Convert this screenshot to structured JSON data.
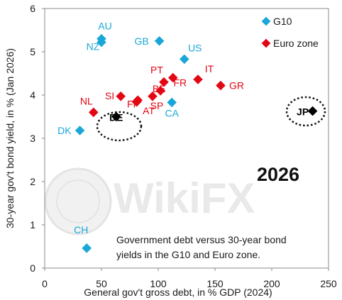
{
  "chart_data": {
    "type": "scatter",
    "title": "",
    "xlabel": "General gov't gross debt, in % GDP (2024)",
    "ylabel": "30-year gov't bond yield, in % (Jan 2026)",
    "xlim": [
      0,
      250
    ],
    "ylim": [
      0,
      6
    ],
    "xticks": [
      "0",
      "50",
      "100",
      "150",
      "200",
      "250"
    ],
    "yticks": [
      "0",
      "1",
      "2",
      "3",
      "4",
      "5",
      "6"
    ],
    "grid": false,
    "legend_position": "top-right",
    "annotation_year": "2026",
    "note_lines": [
      "Government debt versus 30-year bond",
      "yields in the G10 and Euro zone."
    ],
    "watermark": "WikiFX",
    "series": [
      {
        "name": "G10",
        "color": "#1aa7d8",
        "points": [
          {
            "label": "AU",
            "x": 50,
            "y": 5.3
          },
          {
            "label": "NZ",
            "x": 50,
            "y": 5.22
          },
          {
            "label": "GB",
            "x": 101,
            "y": 5.25
          },
          {
            "label": "US",
            "x": 123,
            "y": 4.83
          },
          {
            "label": "CA",
            "x": 112,
            "y": 3.83
          },
          {
            "label": "DK",
            "x": 31,
            "y": 3.18
          },
          {
            "label": "CH",
            "x": 37,
            "y": 0.46
          }
        ]
      },
      {
        "name": "Euro zone",
        "color": "#e30613",
        "points": [
          {
            "label": "PT",
            "x": 105,
            "y": 4.3
          },
          {
            "label": "IT",
            "x": 135,
            "y": 4.36
          },
          {
            "label": "GR",
            "x": 155,
            "y": 4.22
          },
          {
            "label": "FR",
            "x": 113,
            "y": 4.4
          },
          {
            "label": "BE",
            "x": 102,
            "y": 4.1
          },
          {
            "label": "SI",
            "x": 67,
            "y": 3.97
          },
          {
            "label": "SP",
            "x": 95,
            "y": 3.97
          },
          {
            "label": "FI",
            "x": 82,
            "y": 3.88
          },
          {
            "label": "AT",
            "x": 81,
            "y": 3.84
          },
          {
            "label": "NL",
            "x": 43,
            "y": 3.6
          }
        ]
      },
      {
        "name": "",
        "color": "#000000",
        "points": [
          {
            "label": "DE",
            "x": 63,
            "y": 3.5
          },
          {
            "label": "JP",
            "x": 236,
            "y": 3.63
          }
        ]
      }
    ]
  }
}
